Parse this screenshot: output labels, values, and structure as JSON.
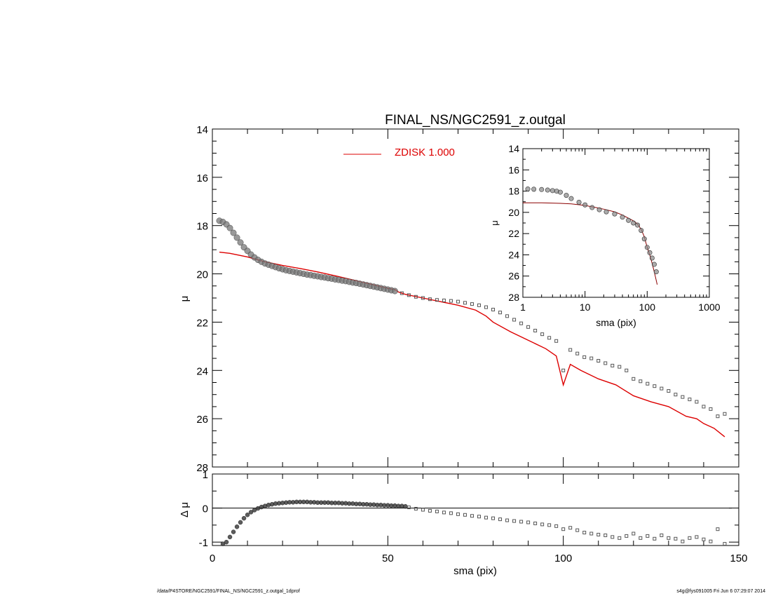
{
  "footer": {
    "left": "/data/P4STORE/NGC2591/FINAL_NS/NGC2591_z.outgal_1dprof",
    "right": "s4g@fys091005  Fri Jun  6 07:29:07 2014"
  },
  "chart_data": [
    {
      "id": "main",
      "type": "scatter",
      "title": "FINAL_NS/NGC2591_z.outgal",
      "xlabel": "",
      "ylabel": "μ",
      "xlim": [
        0,
        150
      ],
      "ylim": [
        28,
        14
      ],
      "y_inverted": true,
      "yticks": [
        "14",
        "16",
        "18",
        "20",
        "22",
        "24",
        "26",
        "28"
      ],
      "legend": {
        "label": "ZDISK  1.000",
        "color": "#dd0000",
        "placement": "top-center"
      },
      "observed_color": "#555555",
      "model_color": "#dd0000",
      "observed_dense": {
        "x": [
          2,
          3,
          4,
          5,
          6,
          7,
          8,
          9,
          10,
          11,
          12,
          13,
          14,
          15,
          16,
          17,
          18,
          19,
          20,
          21,
          22,
          23,
          24,
          25,
          26,
          27,
          28,
          29,
          30,
          31,
          32,
          33,
          34,
          35,
          36,
          37,
          38,
          39,
          40,
          41,
          42,
          43,
          44,
          45,
          46,
          47,
          48,
          49,
          50,
          51,
          52
        ],
        "y": [
          17.8,
          17.85,
          17.95,
          18.1,
          18.3,
          18.5,
          18.7,
          18.9,
          19.05,
          19.2,
          19.32,
          19.42,
          19.5,
          19.57,
          19.62,
          19.67,
          19.72,
          19.77,
          19.81,
          19.85,
          19.88,
          19.91,
          19.94,
          19.97,
          20.0,
          20.03,
          20.05,
          20.08,
          20.1,
          20.13,
          20.15,
          20.18,
          20.2,
          20.23,
          20.25,
          20.28,
          20.3,
          20.33,
          20.36,
          20.38,
          20.41,
          20.44,
          20.47,
          20.5,
          20.53,
          20.56,
          20.59,
          20.62,
          20.65,
          20.68,
          20.71
        ]
      },
      "observed_sparse": {
        "x": [
          54,
          56,
          58,
          60,
          62,
          64,
          66,
          68,
          70,
          72,
          74,
          76,
          78,
          80,
          82,
          84,
          86,
          88,
          90,
          92,
          94,
          96,
          98,
          100,
          102,
          104,
          106,
          108,
          110,
          112,
          114,
          116,
          118,
          120,
          122,
          124,
          126,
          128,
          130,
          132,
          134,
          136,
          138,
          140,
          142,
          144,
          146
        ],
        "y": [
          20.8,
          20.88,
          20.95,
          21.0,
          21.05,
          21.08,
          21.1,
          21.12,
          21.15,
          21.2,
          21.25,
          21.3,
          21.38,
          21.48,
          21.6,
          21.75,
          21.9,
          22.05,
          22.2,
          22.35,
          22.5,
          22.65,
          22.78,
          24.0,
          23.15,
          23.3,
          23.45,
          23.5,
          23.6,
          23.7,
          23.8,
          23.85,
          24.0,
          24.35,
          24.45,
          24.55,
          24.65,
          24.75,
          24.85,
          25.0,
          25.1,
          25.2,
          25.3,
          25.5,
          25.6,
          25.9,
          25.8
        ]
      },
      "model": {
        "x": [
          2,
          5,
          10,
          15,
          20,
          25,
          30,
          35,
          40,
          45,
          50,
          52,
          53,
          55,
          60,
          65,
          70,
          75,
          78,
          80,
          85,
          90,
          95,
          98,
          100,
          102,
          105,
          110,
          115,
          120,
          125,
          130,
          135,
          138,
          140,
          143,
          146
        ],
        "y": [
          19.1,
          19.15,
          19.3,
          19.5,
          19.65,
          19.78,
          19.92,
          20.08,
          20.25,
          20.42,
          20.6,
          20.65,
          20.75,
          20.85,
          21.0,
          21.15,
          21.3,
          21.5,
          21.75,
          22.0,
          22.4,
          22.75,
          23.1,
          23.4,
          24.6,
          23.75,
          24.0,
          24.35,
          24.6,
          25.05,
          25.3,
          25.5,
          25.9,
          26.0,
          26.2,
          26.4,
          26.75
        ]
      }
    },
    {
      "id": "inset",
      "type": "scatter",
      "title": "",
      "xlabel": "sma (pix)",
      "ylabel": "μ",
      "xscale": "log",
      "xlim": [
        1,
        1000
      ],
      "ylim": [
        28,
        14
      ],
      "y_inverted": true,
      "xticks": [
        "1",
        "10",
        "100",
        "1000"
      ],
      "yticks": [
        "14",
        "16",
        "18",
        "20",
        "22",
        "24",
        "26",
        "28"
      ],
      "observed": {
        "x": [
          1.2,
          1.5,
          2,
          2.5,
          3,
          3.5,
          4,
          5,
          6,
          8,
          10,
          13,
          17,
          22,
          30,
          40,
          50,
          60,
          70,
          80,
          90,
          100,
          110,
          120,
          130,
          140
        ],
        "y": [
          17.8,
          17.82,
          17.85,
          17.9,
          17.95,
          18.0,
          18.1,
          18.4,
          18.7,
          19.05,
          19.3,
          19.55,
          19.75,
          19.95,
          20.15,
          20.45,
          20.75,
          21.0,
          21.2,
          21.7,
          22.5,
          23.3,
          23.8,
          24.3,
          24.9,
          25.6
        ]
      },
      "model": {
        "x": [
          1,
          2,
          4,
          6,
          8,
          10,
          15,
          20,
          30,
          40,
          50,
          60,
          70,
          80,
          90,
          100,
          110,
          120,
          130,
          145
        ],
        "y": [
          19.1,
          19.1,
          19.15,
          19.2,
          19.28,
          19.35,
          19.55,
          19.7,
          19.95,
          20.25,
          20.55,
          20.8,
          21.1,
          21.6,
          22.3,
          23.3,
          24.0,
          24.8,
          25.6,
          26.8
        ]
      }
    },
    {
      "id": "residual",
      "type": "scatter",
      "title": "",
      "xlabel": "sma (pix)",
      "ylabel": "Δ μ",
      "xlim": [
        0,
        150
      ],
      "ylim": [
        -1.1,
        1.0
      ],
      "xticks": [
        "0",
        "50",
        "100",
        "150"
      ],
      "yticks": [
        "1",
        "0",
        "-1"
      ],
      "dense": {
        "x": [
          3,
          4,
          5,
          6,
          7,
          8,
          9,
          10,
          11,
          12,
          13,
          14,
          15,
          16,
          17,
          18,
          19,
          20,
          21,
          22,
          23,
          24,
          25,
          26,
          27,
          28,
          29,
          30,
          31,
          32,
          33,
          34,
          35,
          36,
          37,
          38,
          39,
          40,
          41,
          42,
          43,
          44,
          45,
          46,
          47,
          48,
          49,
          50,
          51,
          52,
          53,
          54,
          55
        ],
        "y": [
          -1.05,
          -1.0,
          -0.85,
          -0.7,
          -0.55,
          -0.42,
          -0.3,
          -0.2,
          -0.12,
          -0.06,
          -0.01,
          0.03,
          0.06,
          0.09,
          0.11,
          0.13,
          0.14,
          0.15,
          0.16,
          0.17,
          0.17,
          0.18,
          0.18,
          0.18,
          0.18,
          0.17,
          0.17,
          0.16,
          0.16,
          0.16,
          0.16,
          0.15,
          0.15,
          0.15,
          0.14,
          0.14,
          0.13,
          0.13,
          0.12,
          0.12,
          0.11,
          0.11,
          0.1,
          0.1,
          0.09,
          0.09,
          0.08,
          0.08,
          0.07,
          0.07,
          0.06,
          0.06,
          0.05
        ]
      },
      "sparse": {
        "x": [
          56,
          58,
          60,
          62,
          64,
          66,
          68,
          70,
          72,
          74,
          76,
          78,
          80,
          82,
          84,
          86,
          88,
          90,
          92,
          94,
          96,
          98,
          100,
          102,
          104,
          106,
          108,
          110,
          112,
          114,
          116,
          118,
          120,
          122,
          124,
          126,
          128,
          130,
          132,
          134,
          136,
          138,
          140,
          142,
          144,
          146
        ],
        "y": [
          0.02,
          -0.02,
          -0.05,
          -0.08,
          -0.1,
          -0.13,
          -0.15,
          -0.18,
          -0.2,
          -0.23,
          -0.25,
          -0.28,
          -0.3,
          -0.33,
          -0.36,
          -0.38,
          -0.4,
          -0.42,
          -0.45,
          -0.48,
          -0.5,
          -0.53,
          -0.62,
          -0.58,
          -0.65,
          -0.72,
          -0.75,
          -0.78,
          -0.8,
          -0.85,
          -0.88,
          -0.82,
          -0.75,
          -0.88,
          -0.82,
          -0.9,
          -0.8,
          -0.88,
          -0.9,
          -0.98,
          -0.88,
          -0.85,
          -0.92,
          -0.98,
          -0.62,
          -1.05
        ]
      }
    }
  ]
}
